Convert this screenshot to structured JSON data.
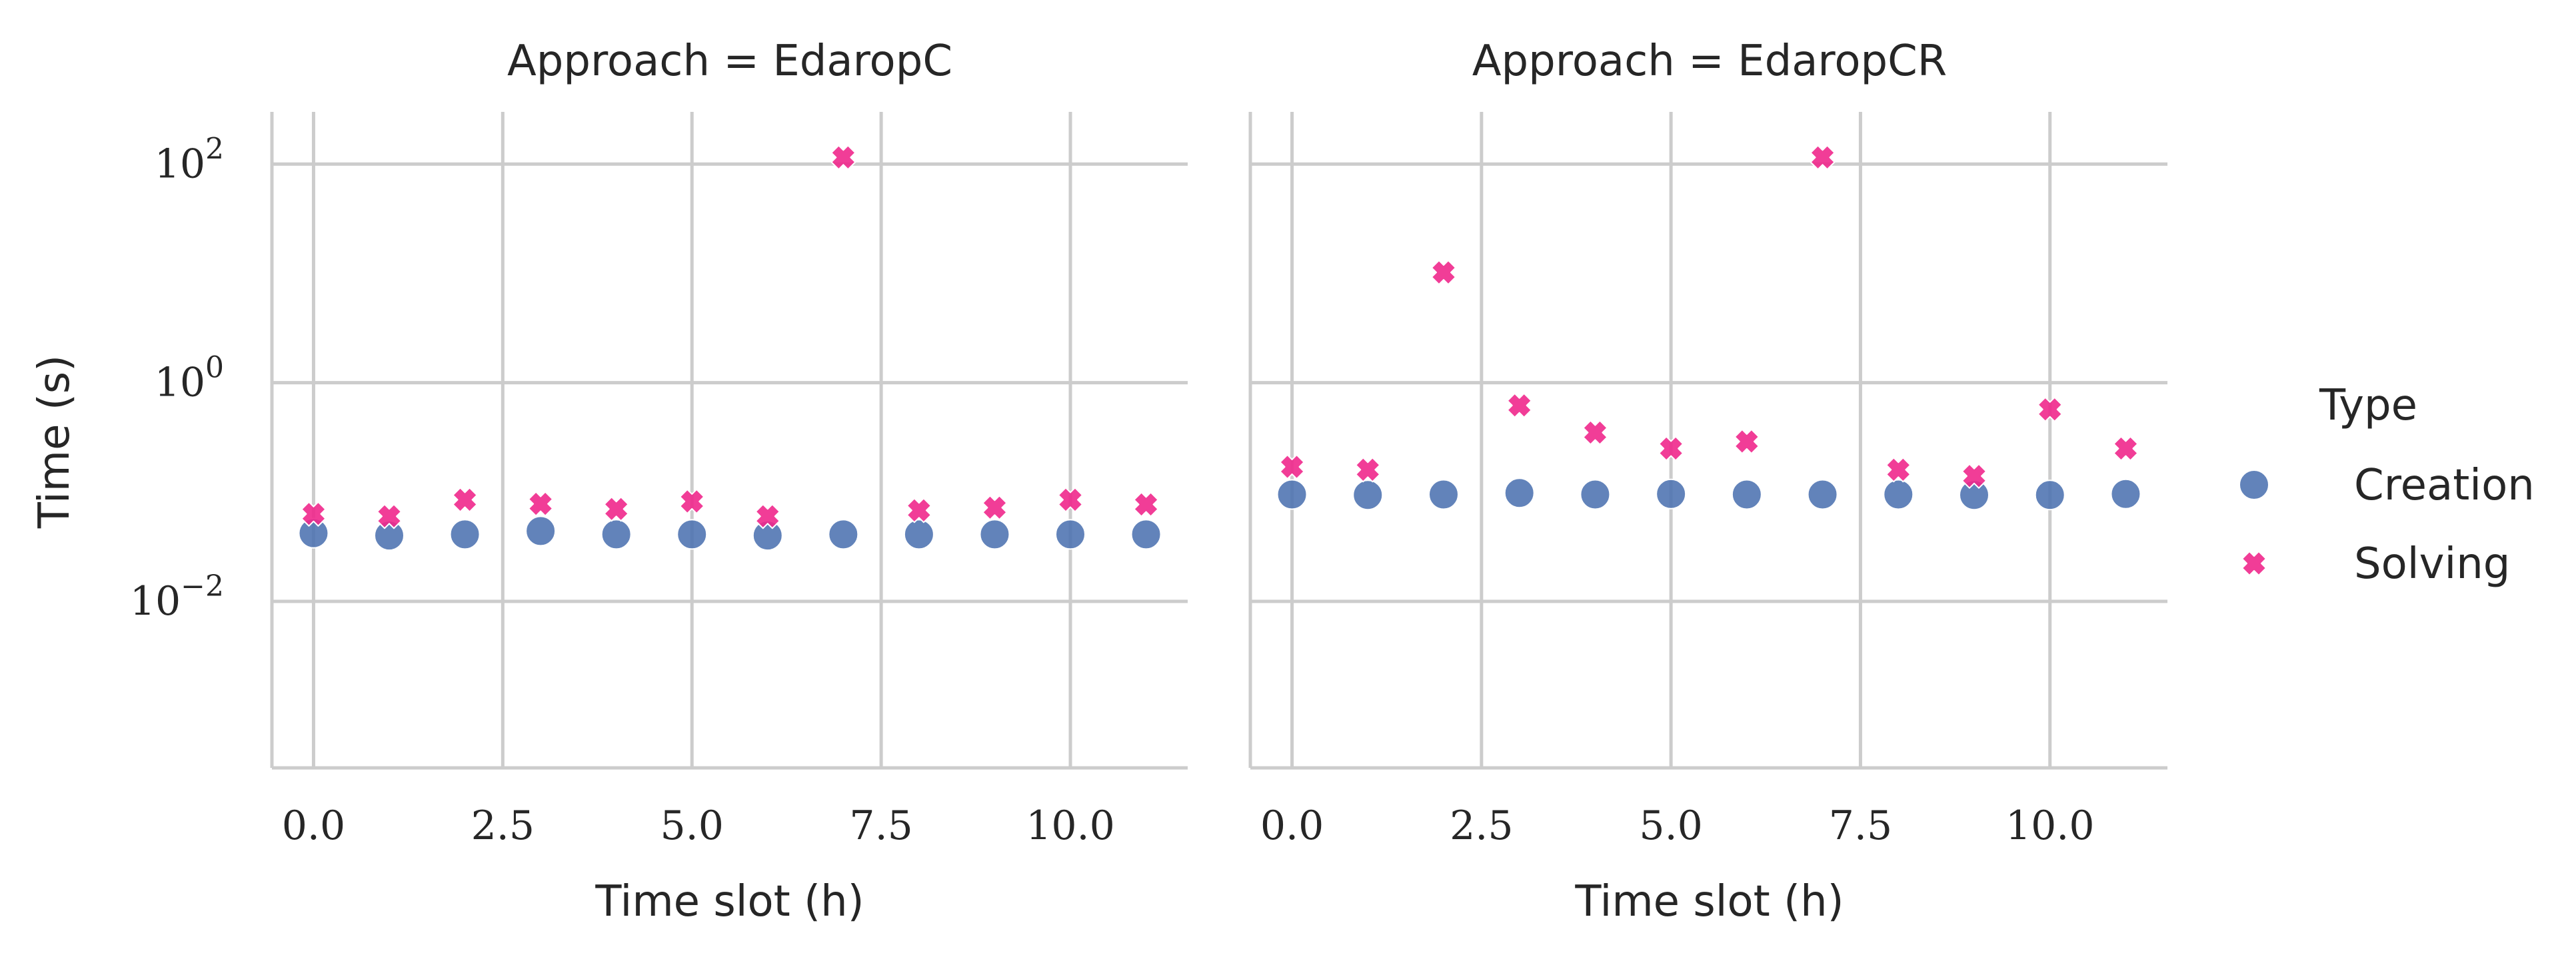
{
  "chart_data": {
    "type": "scatter",
    "ylabel": "Time (s)",
    "xlabel": "Time slot (h)",
    "yscale": "log",
    "ylim": [
      0.0003,
      300
    ],
    "xlim": [
      -0.55,
      11.55
    ],
    "xticks": [
      0.0,
      2.5,
      5.0,
      7.5,
      10.0
    ],
    "xtick_labels": [
      "0.0",
      "2.5",
      "5.0",
      "7.5",
      "10.0"
    ],
    "yticks": [
      0.01,
      1,
      100
    ],
    "ytick_labels": [
      {
        "base": "10",
        "exp": "−2"
      },
      {
        "base": "10",
        "exp": "0"
      },
      {
        "base": "10",
        "exp": "2"
      }
    ],
    "grid": true,
    "legend": {
      "title": "Type",
      "placement": "right",
      "entries": [
        {
          "label": "Creation",
          "marker": "circle",
          "color": "#4c72b0"
        },
        {
          "label": "Solving",
          "marker": "x",
          "color": "#f0288c"
        }
      ]
    },
    "panels": [
      {
        "title": "Approach = EdaropC",
        "x": [
          0,
          1,
          2,
          3,
          4,
          5,
          6,
          7,
          8,
          9,
          10,
          11
        ],
        "series": [
          {
            "name": "Creation",
            "values": [
              0.042,
              0.04,
              0.041,
              0.044,
              0.041,
              0.041,
              0.04,
              0.041,
              0.041,
              0.041,
              0.041,
              0.041
            ]
          },
          {
            "name": "Solving",
            "values": [
              0.063,
              0.06,
              0.085,
              0.078,
              0.07,
              0.082,
              0.06,
              115,
              0.068,
              0.072,
              0.085,
              0.077
            ]
          }
        ]
      },
      {
        "title": "Approach = EdaropCR",
        "x": [
          0,
          1,
          2,
          3,
          4,
          5,
          6,
          7,
          8,
          9,
          10,
          11
        ],
        "series": [
          {
            "name": "Creation",
            "values": [
              0.095,
              0.094,
              0.095,
              0.098,
              0.095,
              0.096,
              0.095,
              0.095,
              0.095,
              0.094,
              0.094,
              0.096
            ]
          },
          {
            "name": "Solving",
            "values": [
              0.17,
              0.16,
              10.2,
              0.62,
              0.35,
              0.25,
              0.29,
              115,
              0.16,
              0.14,
              0.57,
              0.25
            ]
          }
        ]
      }
    ]
  }
}
